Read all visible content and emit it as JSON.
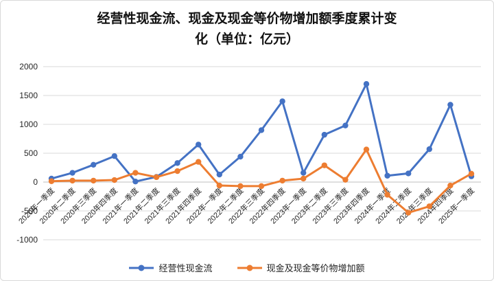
{
  "title": {
    "line1": "经营性现金流、现金及现金等价物增加额季度累计变",
    "line2": "化（单位：亿元）"
  },
  "chart_data": {
    "type": "line",
    "title": "经营性现金流、现金及现金等价物增加额季度累计变化（单位：亿元）",
    "categories": [
      "2020年一季度",
      "2020年二季度",
      "2020年三季度",
      "2020年四季度",
      "2021年一季度",
      "2021年二季度",
      "2021年三季度",
      "2021年四季度",
      "2022年一季度",
      "2022年二季度",
      "2022年三季度",
      "2022年四季度",
      "2023年一季度",
      "2023年二季度",
      "2023年三季度",
      "2023年四季度",
      "2024年一季度",
      "2024年二季度",
      "2024年三季度",
      "2024年四季度",
      "2025年一季度"
    ],
    "series": [
      {
        "name": "经营性现金流",
        "color": "#4472C4",
        "values": [
          60,
          160,
          300,
          450,
          10,
          90,
          330,
          650,
          130,
          440,
          900,
          1400,
          160,
          820,
          980,
          1700,
          110,
          150,
          570,
          1340,
          100
        ]
      },
      {
        "name": "现金及现金等价物增加额",
        "color": "#ED7D31",
        "values": [
          15,
          25,
          25,
          35,
          160,
          85,
          190,
          350,
          -60,
          -70,
          -70,
          25,
          60,
          290,
          40,
          565,
          -220,
          -530,
          -420,
          -60,
          145
        ]
      }
    ],
    "ylim": [
      -1000,
      2000
    ],
    "ytick_interval": 500,
    "ytick_labels": [
      "-1000",
      "-500",
      "0",
      "500",
      "1000",
      "1500",
      "2000"
    ],
    "grid": true,
    "legend_position": "bottom"
  }
}
